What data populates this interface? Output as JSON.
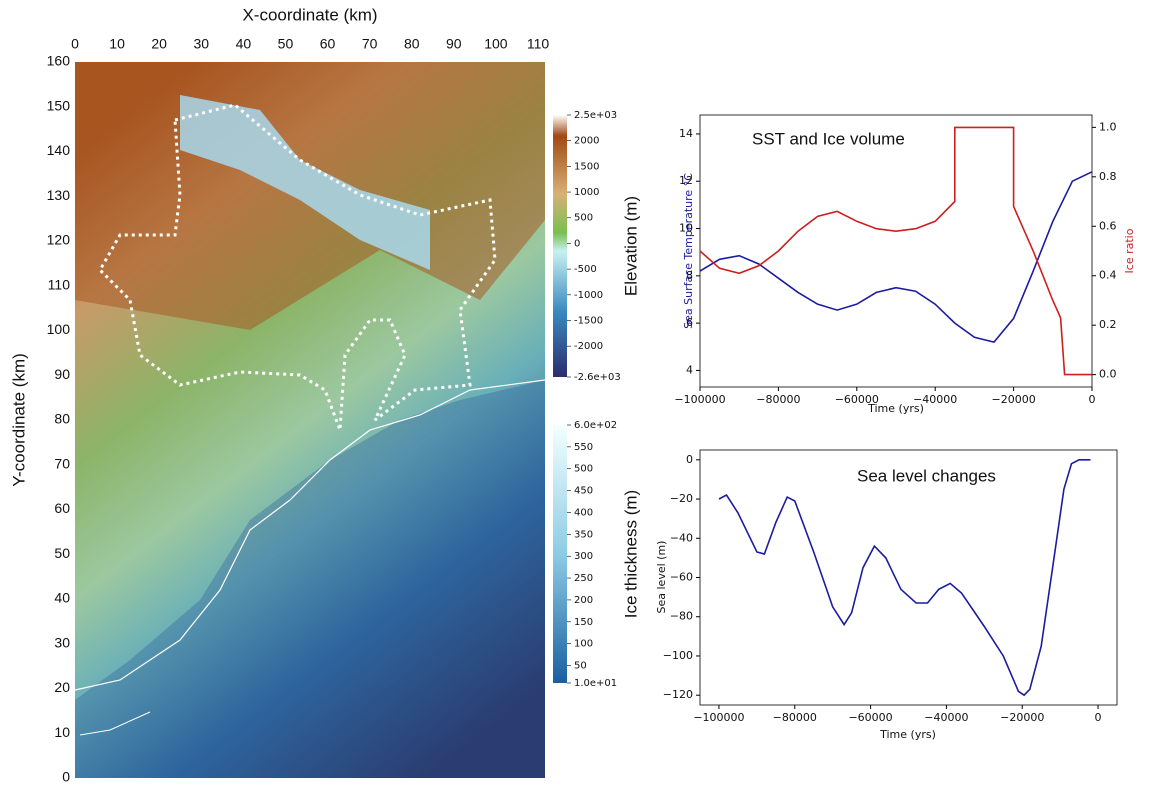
{
  "chart_data": [
    {
      "type": "map",
      "xlabel": "X-coordinate (km)",
      "ylabel": "Y-coordinate (km)",
      "xlim": [
        0,
        110
      ],
      "xticks": [
        0,
        10,
        20,
        30,
        40,
        50,
        60,
        70,
        80,
        90,
        100,
        110
      ],
      "ylim": [
        0,
        160
      ],
      "yticks": [
        0,
        10,
        20,
        30,
        40,
        50,
        60,
        70,
        80,
        90,
        100,
        110,
        120,
        130,
        140,
        150,
        160
      ],
      "colorbars": [
        {
          "label": "Elevation (m)",
          "range": [
            -2600,
            2500
          ],
          "ticks": [
            {
              "value": 2500,
              "label": "2.5e+03"
            },
            2000,
            1500,
            1000,
            500,
            0,
            -500,
            -1000,
            -1500,
            -2000,
            {
              "value": -2600,
              "label": "-2.6e+03"
            }
          ]
        },
        {
          "label": "Ice thickness (m)",
          "range": [
            10,
            600
          ],
          "ticks": [
            {
              "value": 600,
              "label": "6.0e+02"
            },
            550,
            500,
            450,
            400,
            350,
            300,
            250,
            200,
            150,
            100,
            50,
            {
              "value": 10,
              "label": "1.0e+01"
            }
          ]
        }
      ]
    },
    {
      "type": "line",
      "annotation": "SST and Ice volume",
      "xlabel": "Time (yrs)",
      "ylabel": "Sea Surface Temperature °C",
      "y2label": "Ice ratio",
      "xlim": [
        -100000,
        0
      ],
      "xticks": [
        {
          "value": -100000,
          "label": "−100000"
        },
        {
          "value": -80000,
          "label": "−80000"
        },
        {
          "value": -60000,
          "label": "−60000"
        },
        {
          "value": -40000,
          "label": "−40000"
        },
        {
          "value": -20000,
          "label": "−20000"
        },
        0
      ],
      "ylim": [
        3.3,
        14.8
      ],
      "yticks": [
        4,
        6,
        8,
        10,
        12,
        14
      ],
      "y2lim": [
        -0.05,
        1.05
      ],
      "y2ticks": [
        {
          "value": 0,
          "label": "0.0"
        },
        0.2,
        0.4,
        0.6,
        0.8,
        {
          "value": 1,
          "label": "1.0"
        }
      ],
      "series": [
        {
          "name": "Sea Surface Temperature",
          "color": "#1c1ca0",
          "x": [
            -100000,
            -95000,
            -90000,
            -85000,
            -80000,
            -75000,
            -70000,
            -65000,
            -60000,
            -55000,
            -50000,
            -45000,
            -40000,
            -35000,
            -30000,
            -25000,
            -20000,
            -15000,
            -10000,
            -5000,
            0
          ],
          "values": [
            8.2,
            8.7,
            8.85,
            8.5,
            7.9,
            7.3,
            6.8,
            6.55,
            6.8,
            7.3,
            7.5,
            7.35,
            6.8,
            6.0,
            5.4,
            5.2,
            6.2,
            8.2,
            10.3,
            12.0,
            12.4
          ]
        },
        {
          "name": "Ice ratio",
          "color": "#cc1f1f",
          "axis": "y2",
          "x": [
            -100000,
            -95000,
            -90000,
            -85000,
            -80000,
            -75000,
            -70000,
            -65000,
            -60000,
            -55000,
            -50000,
            -45000,
            -40000,
            -35000,
            -35000,
            -20000,
            -20000,
            -15000,
            -10000,
            -8000,
            -7000,
            0
          ],
          "values": [
            0.5,
            0.43,
            0.41,
            0.44,
            0.5,
            0.58,
            0.64,
            0.66,
            0.62,
            0.59,
            0.58,
            0.59,
            0.62,
            0.7,
            1.0,
            1.0,
            0.68,
            0.5,
            0.3,
            0.23,
            0.0,
            0.0
          ]
        }
      ]
    },
    {
      "type": "line",
      "annotation": "Sea level changes",
      "xlabel": "Time (yrs)",
      "ylabel": "Sea level (m)",
      "xlim": [
        -105000,
        5000
      ],
      "xticks": [
        {
          "value": -100000,
          "label": "−100000"
        },
        {
          "value": -80000,
          "label": "−80000"
        },
        {
          "value": -60000,
          "label": "−60000"
        },
        {
          "value": -40000,
          "label": "−40000"
        },
        {
          "value": -20000,
          "label": "−20000"
        },
        0
      ],
      "ylim": [
        -125,
        5
      ],
      "yticks": [
        {
          "value": -120,
          "label": "−120"
        },
        {
          "value": -100,
          "label": "−100"
        },
        {
          "value": -80,
          "label": "−80"
        },
        {
          "value": -60,
          "label": "−60"
        },
        {
          "value": -40,
          "label": "−40"
        },
        {
          "value": -20,
          "label": "−20"
        },
        0
      ],
      "series": [
        {
          "name": "Sea level",
          "color": "#1c1ca0",
          "x": [
            -100000,
            -98000,
            -95000,
            -90000,
            -88000,
            -85000,
            -82000,
            -80000,
            -75000,
            -70000,
            -67000,
            -65000,
            -62000,
            -59000,
            -56000,
            -52000,
            -48000,
            -45000,
            -42000,
            -39000,
            -36000,
            -30000,
            -25000,
            -21000,
            -19500,
            -18000,
            -15000,
            -12000,
            -9000,
            -7000,
            -5000,
            -2000
          ],
          "values": [
            -20,
            -18,
            -27,
            -47,
            -48,
            -32,
            -19,
            -21,
            -47,
            -75,
            -84,
            -78,
            -55,
            -44,
            -50,
            -66,
            -73,
            -73,
            -66,
            -63,
            -68,
            -85,
            -100,
            -118,
            -120,
            -117,
            -95,
            -55,
            -15,
            -2,
            0,
            0
          ]
        }
      ]
    }
  ]
}
